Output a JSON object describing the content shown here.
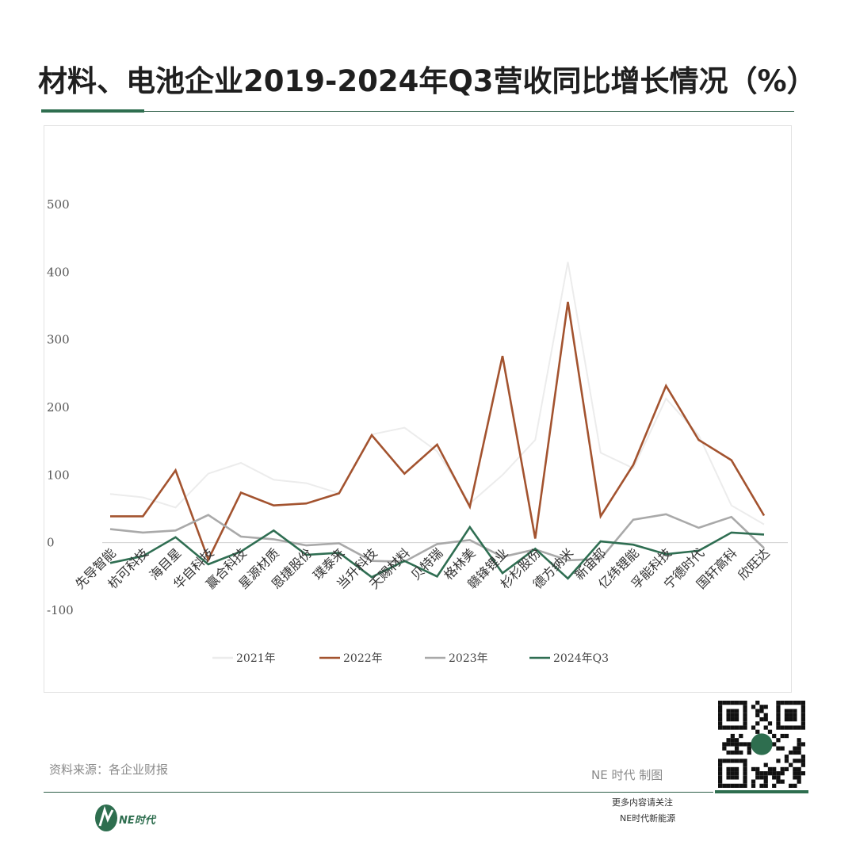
{
  "title": "材料、电池企业2019-2024年Q3营收同比增长情况（%）",
  "source": "资料来源：各企业财报",
  "credit": "NE 时代 制图",
  "follow_line1": "更多内容请关注",
  "follow_line2": "NE时代新能源",
  "logo_text": "NE时代",
  "colors": {
    "accent": "#2e6e4f",
    "series_2021": "#ececec",
    "series_2022": "#a3532f",
    "series_2023": "#a9a9a9",
    "series_2024": "#2f6e52"
  },
  "chart_data": {
    "type": "line",
    "categories": [
      "先导智能",
      "杭可科技",
      "海目星",
      "华自科技",
      "赢合科技",
      "星源材质",
      "恩捷股份",
      "璞泰来",
      "当升科技",
      "天赐材料",
      "贝特瑞",
      "格林美",
      "赣锋锂业",
      "杉杉股份",
      "德方纳米",
      "新宙邦",
      "亿纬锂能",
      "孚能科技",
      "宁德时代",
      "国轩高科",
      "欣旺达"
    ],
    "series": [
      {
        "name": "2021年",
        "color": "#ececec",
        "values": [
          72,
          67,
          52,
          102,
          118,
          93,
          88,
          73,
          160,
          170,
          135,
          58,
          100,
          152,
          415,
          133,
          110,
          213,
          159,
          55,
          27
        ]
      },
      {
        "name": "2022年",
        "color": "#a3532f",
        "values": [
          39,
          39,
          107,
          -25,
          74,
          55,
          58,
          73,
          159,
          102,
          145,
          53,
          276,
          6,
          356,
          39,
          115,
          232,
          152,
          122,
          40
        ]
      },
      {
        "name": "2023年",
        "color": "#a9a9a9",
        "values": [
          20,
          15,
          18,
          41,
          9,
          5,
          -4,
          -1,
          -27,
          -28,
          -2,
          4,
          -21,
          -10,
          -26,
          -24,
          34,
          42,
          22,
          38,
          -8
        ]
      },
      {
        "name": "2024年Q3",
        "color": "#2f6e52",
        "values": [
          -30,
          -20,
          8,
          -32,
          -13,
          18,
          -18,
          -15,
          -51,
          -27,
          -50,
          23,
          -45,
          -9,
          -53,
          2,
          -3,
          -17,
          -12,
          15,
          12
        ]
      }
    ],
    "ylim": [
      -100,
      500
    ],
    "yticks": [
      -100,
      0,
      100,
      200,
      300,
      400,
      500
    ],
    "legend_position": "bottom",
    "grid": false
  }
}
